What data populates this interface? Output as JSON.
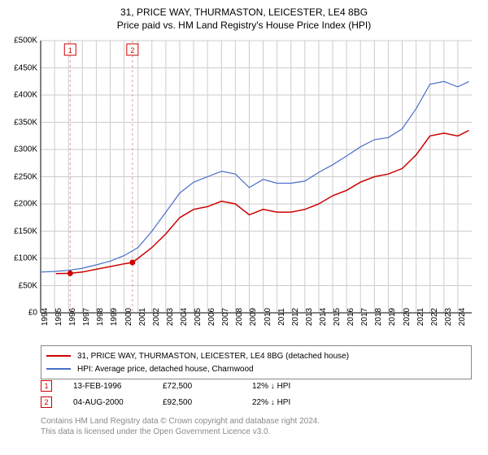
{
  "title_line1": "31, PRICE WAY, THURMASTON, LEICESTER, LE4 8BG",
  "title_line2": "Price paid vs. HM Land Registry's House Price Index (HPI)",
  "chart": {
    "type": "line",
    "background_color": "#ffffff",
    "grid_color": "#cccccc",
    "axis_color": "#000000",
    "x_years": [
      1994,
      1995,
      1996,
      1997,
      1998,
      1999,
      2000,
      2001,
      2002,
      2003,
      2004,
      2005,
      2006,
      2007,
      2008,
      2009,
      2010,
      2011,
      2012,
      2013,
      2014,
      2015,
      2016,
      2017,
      2018,
      2019,
      2020,
      2021,
      2022,
      2023,
      2024
    ],
    "xlim": [
      1994,
      2025
    ],
    "ylim": [
      0,
      500000
    ],
    "ytick_step": 50000,
    "y_tick_labels": [
      "£0",
      "£50K",
      "£100K",
      "£150K",
      "£200K",
      "£250K",
      "£300K",
      "£350K",
      "£400K",
      "£450K",
      "£500K"
    ],
    "label_fontsize": 10,
    "series": [
      {
        "name": "property",
        "label": "31, PRICE WAY, THURMASTON, LEICESTER, LE4 8BG (detached house)",
        "color": "#cc0000",
        "line_width": 1.5,
        "data": [
          [
            1995.1,
            72000
          ],
          [
            1996.1,
            72500
          ],
          [
            1997,
            75000
          ],
          [
            1998,
            80000
          ],
          [
            1999,
            85000
          ],
          [
            2000,
            90000
          ],
          [
            2000.6,
            92500
          ],
          [
            2001,
            100000
          ],
          [
            2002,
            120000
          ],
          [
            2003,
            145000
          ],
          [
            2004,
            175000
          ],
          [
            2005,
            190000
          ],
          [
            2006,
            195000
          ],
          [
            2007,
            205000
          ],
          [
            2008,
            200000
          ],
          [
            2009,
            180000
          ],
          [
            2010,
            190000
          ],
          [
            2011,
            185000
          ],
          [
            2012,
            185000
          ],
          [
            2013,
            190000
          ],
          [
            2014,
            200000
          ],
          [
            2015,
            215000
          ],
          [
            2016,
            225000
          ],
          [
            2017,
            240000
          ],
          [
            2018,
            250000
          ],
          [
            2019,
            255000
          ],
          [
            2020,
            265000
          ],
          [
            2021,
            290000
          ],
          [
            2022,
            325000
          ],
          [
            2023,
            330000
          ],
          [
            2024,
            325000
          ],
          [
            2024.8,
            335000
          ]
        ]
      },
      {
        "name": "hpi",
        "label": "HPI: Average price, detached house, Charnwood",
        "color": "#4a6fc8",
        "line_width": 1.2,
        "data": [
          [
            1994,
            75000
          ],
          [
            1995,
            76000
          ],
          [
            1996,
            78000
          ],
          [
            1997,
            82000
          ],
          [
            1998,
            88000
          ],
          [
            1999,
            95000
          ],
          [
            2000,
            105000
          ],
          [
            2001,
            120000
          ],
          [
            2002,
            150000
          ],
          [
            2003,
            185000
          ],
          [
            2004,
            220000
          ],
          [
            2005,
            240000
          ],
          [
            2006,
            250000
          ],
          [
            2007,
            260000
          ],
          [
            2008,
            255000
          ],
          [
            2009,
            230000
          ],
          [
            2010,
            245000
          ],
          [
            2011,
            238000
          ],
          [
            2012,
            238000
          ],
          [
            2013,
            242000
          ],
          [
            2014,
            258000
          ],
          [
            2015,
            272000
          ],
          [
            2016,
            288000
          ],
          [
            2017,
            305000
          ],
          [
            2018,
            318000
          ],
          [
            2019,
            322000
          ],
          [
            2020,
            338000
          ],
          [
            2021,
            375000
          ],
          [
            2022,
            420000
          ],
          [
            2023,
            425000
          ],
          [
            2024,
            415000
          ],
          [
            2024.8,
            425000
          ]
        ]
      }
    ],
    "sale_markers": [
      {
        "idx": "1",
        "year": 1996.12,
        "price": 72500,
        "color": "#cc0000"
      },
      {
        "idx": "2",
        "year": 2000.6,
        "price": 92500,
        "color": "#cc0000"
      }
    ],
    "marker_line_color": "#d9a0a0",
    "marker_dot_color": "#cc0000",
    "marker_box_border": "#cc0000",
    "marker_box_text": "#cc0000"
  },
  "legend": {
    "row1_label": "31, PRICE WAY, THURMASTON, LEICESTER, LE4 8BG (detached house)",
    "row2_label": "HPI: Average price, detached house, Charnwood"
  },
  "sales": [
    {
      "idx": "1",
      "date": "13-FEB-1996",
      "price": "£72,500",
      "pct": "12% ↓ HPI"
    },
    {
      "idx": "2",
      "date": "04-AUG-2000",
      "price": "£92,500",
      "pct": "22% ↓ HPI"
    }
  ],
  "footer_line1": "Contains HM Land Registry data © Crown copyright and database right 2024.",
  "footer_line2": "This data is licensed under the Open Government Licence v3.0."
}
